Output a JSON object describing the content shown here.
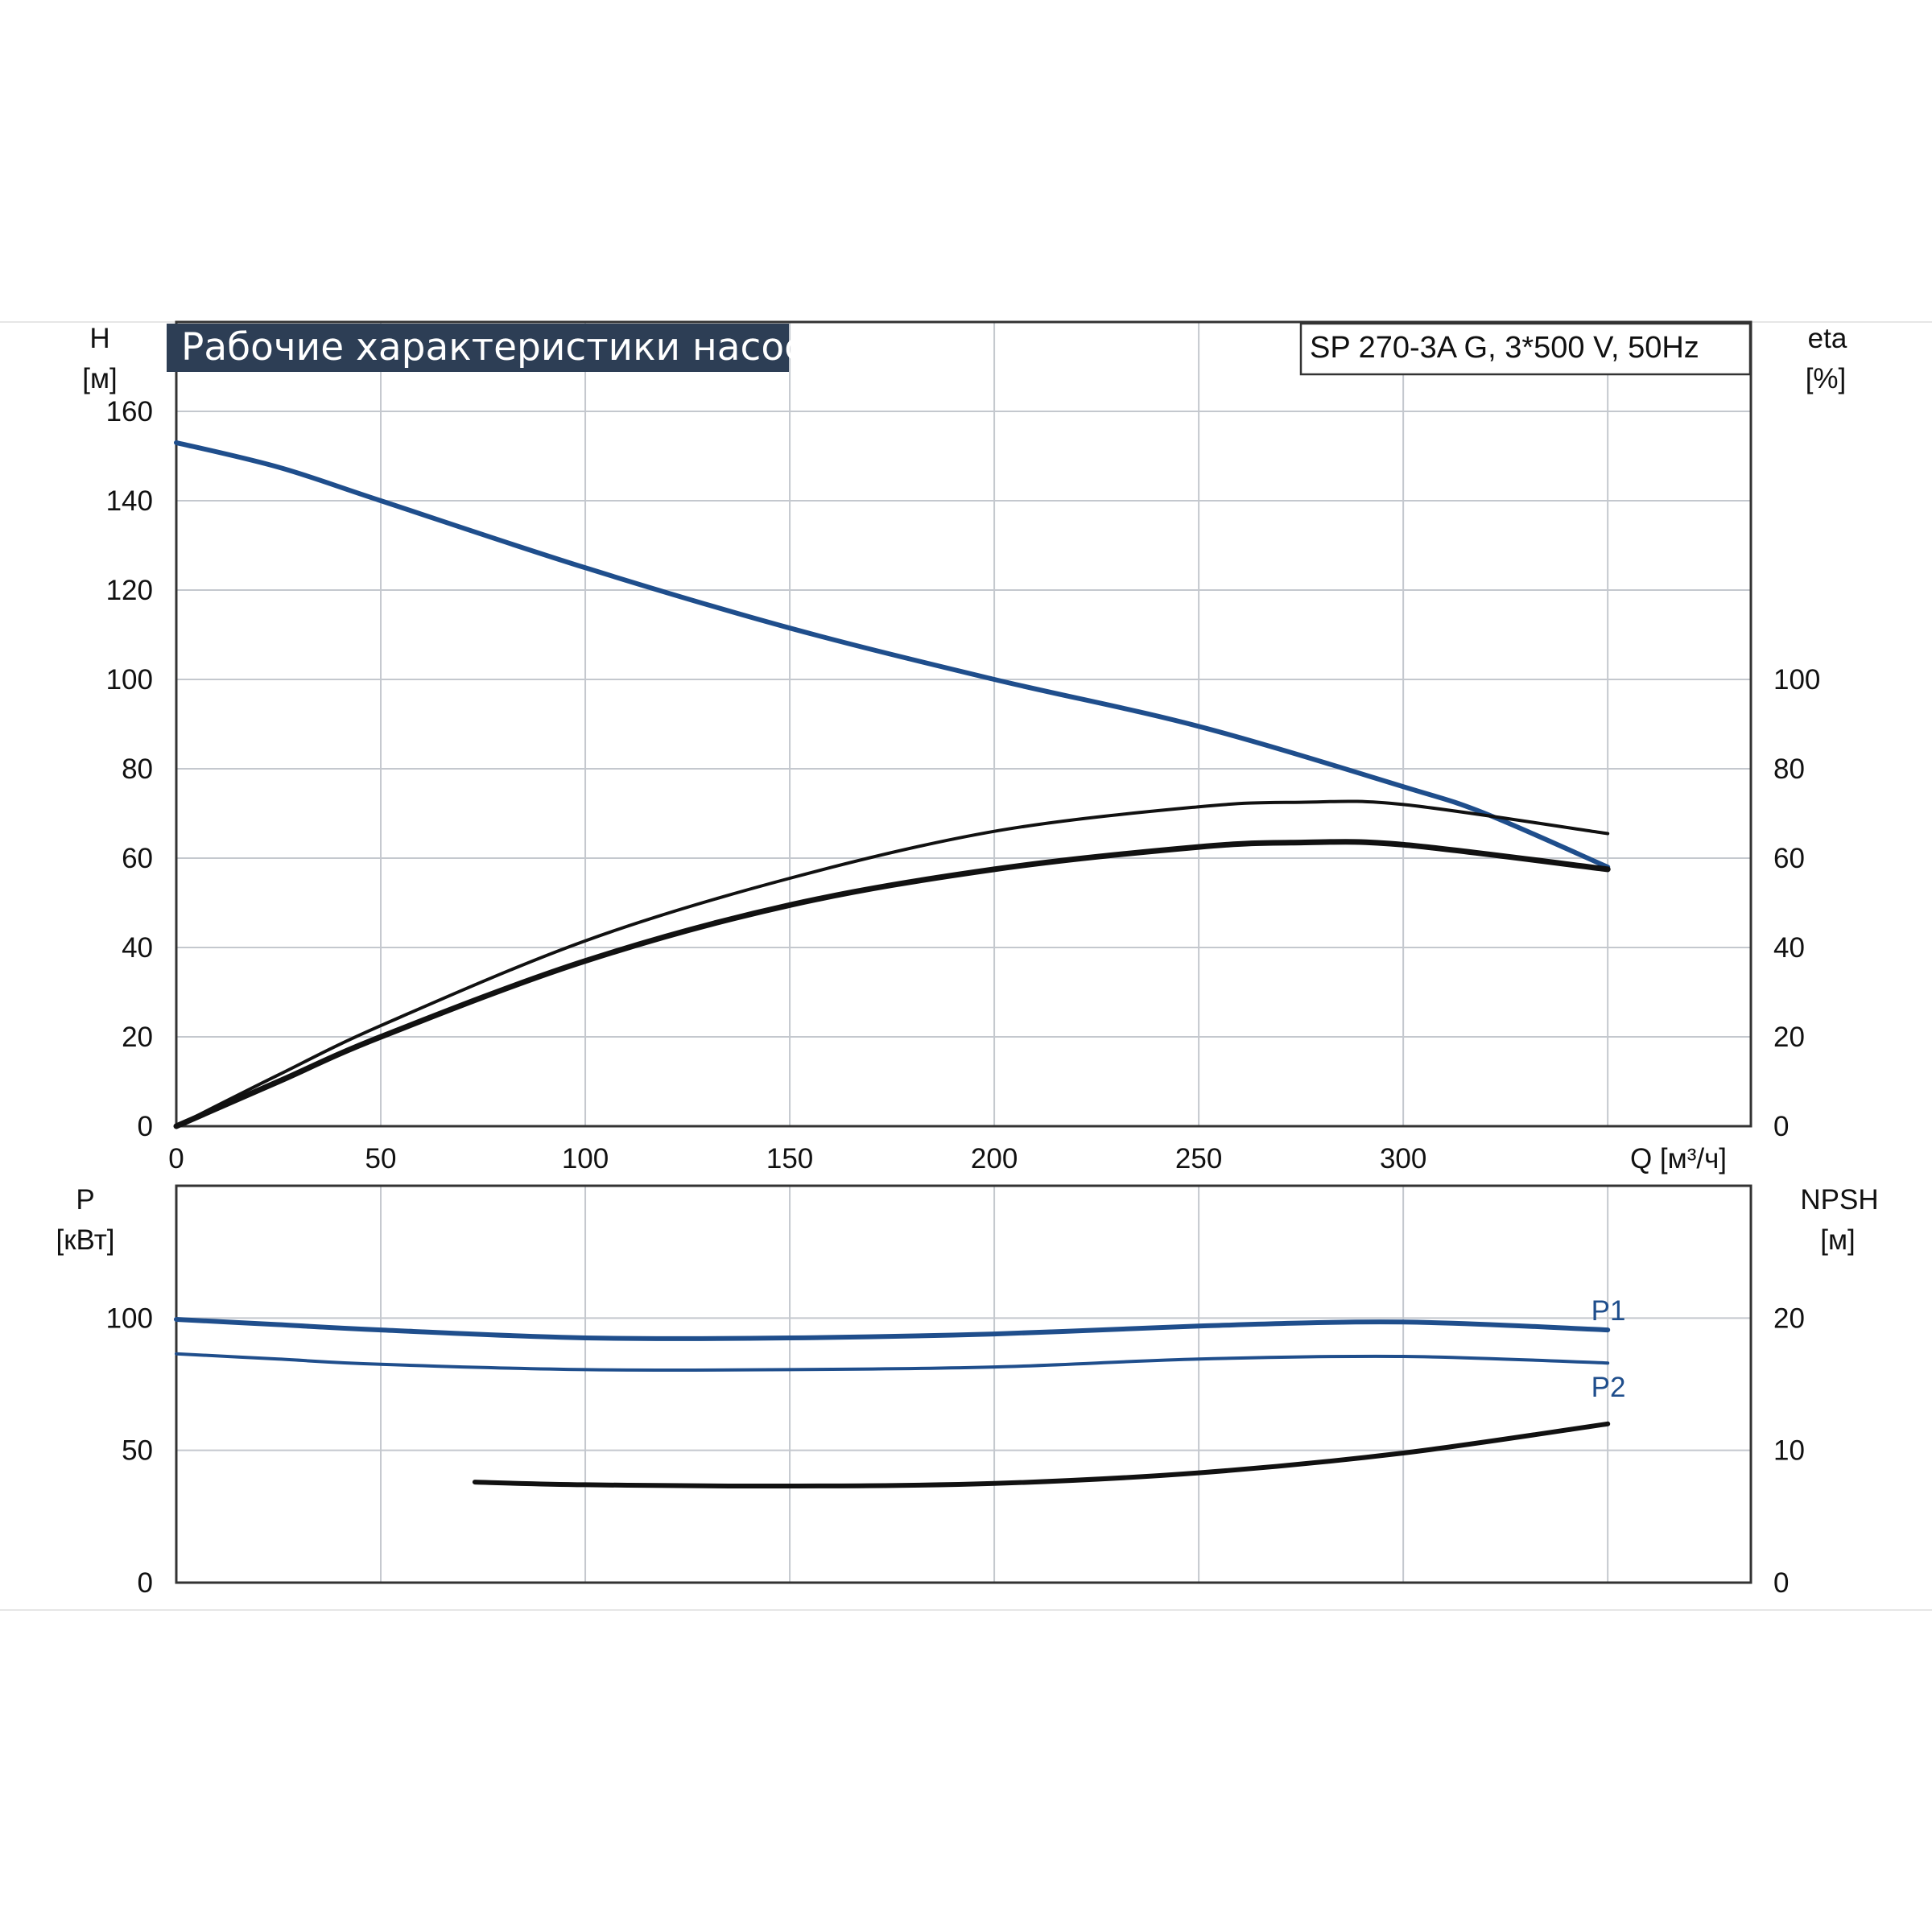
{
  "title": "Рабочие характеристики насоса",
  "model": "SP 270-3A G, 3*500 V, 50Hz",
  "colors": {
    "blue": "#1f4e8c",
    "black": "#111111",
    "grid": "#c4c8ce",
    "title_bg": "#2d3e55"
  },
  "chart_data": [
    {
      "type": "line",
      "name": "head-efficiency",
      "xlabel": "Q [м³/ч]",
      "ylabel_left_line1": "H",
      "ylabel_left_line2": "[м]",
      "ylabel_right_line1": "eta",
      "ylabel_right_line2": "[%]",
      "xlim": [
        0,
        385
      ],
      "ylim_left": [
        0,
        180
      ],
      "ylim_right": [
        0,
        180
      ],
      "x_ticks": [
        "0",
        "50",
        "100",
        "150",
        "200",
        "250",
        "300"
      ],
      "y_ticks_left": [
        "0",
        "20",
        "40",
        "60",
        "80",
        "100",
        "120",
        "140",
        "160"
      ],
      "y_ticks_right": [
        "0",
        "20",
        "40",
        "60",
        "80",
        "100"
      ],
      "grid": true,
      "series": [
        {
          "id": "head",
          "color": "blue",
          "x": [
            0,
            25,
            50,
            100,
            150,
            200,
            250,
            300,
            320,
            350
          ],
          "y": [
            153,
            147.5,
            140,
            125,
            111.5,
            100,
            89.5,
            76,
            70,
            58
          ]
        },
        {
          "id": "efficiency-pump",
          "color": "black",
          "x": [
            0,
            25,
            50,
            100,
            150,
            200,
            250,
            275,
            300,
            350
          ],
          "y": [
            0,
            11.5,
            22.5,
            41.5,
            55.5,
            66,
            71.5,
            72.5,
            72,
            65.5
          ]
        },
        {
          "id": "efficiency-total",
          "color": "black",
          "x": [
            0,
            25,
            50,
            100,
            150,
            200,
            250,
            275,
            300,
            350
          ],
          "y": [
            0,
            10,
            20,
            37,
            49.5,
            57.5,
            62.5,
            63.5,
            63,
            57.5
          ]
        }
      ]
    },
    {
      "type": "line",
      "name": "power-npsh",
      "ylabel_left_line1": "P",
      "ylabel_left_line2": "[кВт]",
      "ylabel_right_line1": "NPSH",
      "ylabel_right_line2": "[м]",
      "ylim_left": [
        0,
        150
      ],
      "ylim_right": [
        0,
        30
      ],
      "y_ticks_left": [
        "0",
        "50",
        "100"
      ],
      "y_ticks_right": [
        "0",
        "10",
        "20"
      ],
      "grid": true,
      "series": [
        {
          "id": "P1",
          "name": "P1",
          "color": "blue",
          "x": [
            0,
            25,
            50,
            100,
            150,
            200,
            250,
            300,
            350
          ],
          "y": [
            99.5,
            97.5,
            95.5,
            92.5,
            92.5,
            94,
            97,
            98.5,
            95.5
          ]
        },
        {
          "id": "P2",
          "name": "P2",
          "color": "blue",
          "x": [
            0,
            25,
            50,
            100,
            150,
            200,
            250,
            300,
            350
          ],
          "y": [
            86.5,
            84.5,
            82.5,
            80.5,
            80.5,
            81.5,
            84.5,
            85.5,
            83
          ]
        },
        {
          "id": "NPSH",
          "color": "black",
          "x": [
            73,
            100,
            150,
            200,
            250,
            300,
            350
          ],
          "y": [
            7.6,
            7.4,
            7.3,
            7.5,
            8.3,
            9.8,
            12
          ]
        }
      ]
    }
  ]
}
